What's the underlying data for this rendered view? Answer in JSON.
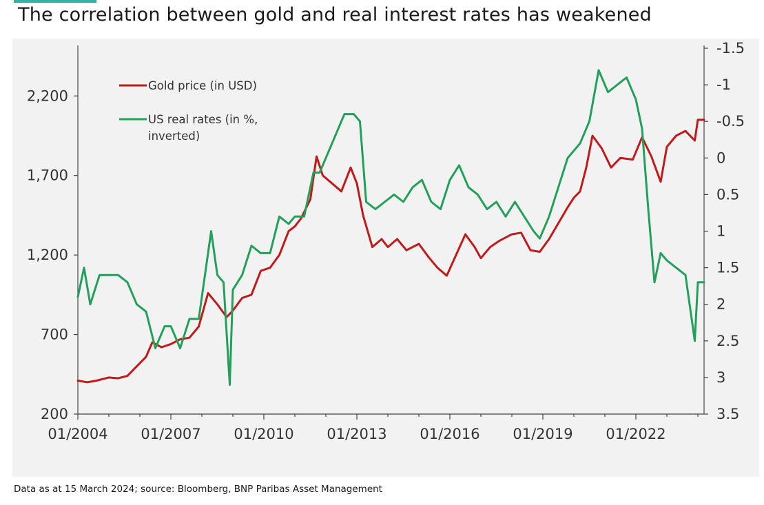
{
  "title": "The correlation between gold and real interest rates has weakened",
  "source": "Data as at 15 March 2024; source: Bloomberg, BNP Paribas Asset Management",
  "colors": {
    "gold": "#c01a1a",
    "rates": "#22a05a",
    "axis": "#444444",
    "background": "#f2f2f2"
  },
  "chart_data": {
    "type": "line",
    "title": "The correlation between gold and real interest rates has weakened",
    "x_ticks": [
      "01/2004",
      "01/2007",
      "01/2010",
      "01/2013",
      "01/2016",
      "01/2019",
      "01/2022"
    ],
    "x_range": [
      2004.0,
      2024.2
    ],
    "y_left": {
      "ticks": [
        "200",
        "700",
        "1,200",
        "1,700",
        "2,200"
      ],
      "tick_values": [
        200,
        700,
        1200,
        1700,
        2200
      ],
      "range": [
        200,
        2500
      ]
    },
    "y_right": {
      "ticks": [
        "-1.5",
        "-1",
        "-0.5",
        "0",
        "0.5",
        "1",
        "1.5",
        "2",
        "2.5",
        "3",
        "3.5"
      ],
      "tick_values": [
        -1.5,
        -1,
        -0.5,
        0,
        0.5,
        1,
        1.5,
        2,
        2.5,
        3,
        3.5
      ],
      "range": [
        -1.5,
        3.5
      ],
      "inverted": true
    },
    "legend": {
      "position": "top-left"
    },
    "series": [
      {
        "name": "Gold price (in USD)",
        "axis": "left",
        "x": [
          2004.0,
          2004.3,
          2004.6,
          2005.0,
          2005.3,
          2005.6,
          2005.9,
          2006.2,
          2006.4,
          2006.7,
          2007.0,
          2007.3,
          2007.6,
          2007.9,
          2008.2,
          2008.5,
          2008.8,
          2009.0,
          2009.3,
          2009.6,
          2009.9,
          2010.2,
          2010.5,
          2010.8,
          2011.0,
          2011.2,
          2011.5,
          2011.7,
          2011.9,
          2012.2,
          2012.5,
          2012.8,
          2013.0,
          2013.2,
          2013.5,
          2013.8,
          2014.0,
          2014.3,
          2014.6,
          2015.0,
          2015.3,
          2015.6,
          2015.9,
          2016.2,
          2016.5,
          2016.8,
          2017.0,
          2017.3,
          2017.6,
          2018.0,
          2018.3,
          2018.6,
          2018.9,
          2019.2,
          2019.5,
          2019.8,
          2020.0,
          2020.2,
          2020.4,
          2020.6,
          2020.9,
          2021.2,
          2021.5,
          2021.9,
          2022.2,
          2022.5,
          2022.8,
          2023.0,
          2023.3,
          2023.6,
          2023.9,
          2024.0,
          2024.2
        ],
        "values": [
          410,
          400,
          410,
          430,
          425,
          440,
          500,
          560,
          650,
          620,
          640,
          670,
          680,
          750,
          960,
          890,
          810,
          850,
          930,
          950,
          1100,
          1120,
          1200,
          1350,
          1380,
          1430,
          1550,
          1820,
          1700,
          1650,
          1600,
          1750,
          1650,
          1450,
          1250,
          1300,
          1250,
          1300,
          1230,
          1270,
          1190,
          1120,
          1070,
          1200,
          1330,
          1250,
          1180,
          1250,
          1290,
          1330,
          1340,
          1230,
          1220,
          1300,
          1400,
          1500,
          1560,
          1600,
          1750,
          1950,
          1870,
          1750,
          1810,
          1800,
          1940,
          1820,
          1660,
          1880,
          1950,
          1980,
          1920,
          2050,
          2050
        ]
      },
      {
        "name": "US real rates (in %, inverted)",
        "axis": "right",
        "x": [
          2004.0,
          2004.2,
          2004.4,
          2004.7,
          2005.0,
          2005.3,
          2005.6,
          2005.9,
          2006.2,
          2006.5,
          2006.8,
          2007.0,
          2007.3,
          2007.6,
          2007.9,
          2008.1,
          2008.3,
          2008.5,
          2008.7,
          2008.9,
          2009.0,
          2009.3,
          2009.6,
          2009.9,
          2010.2,
          2010.5,
          2010.8,
          2011.0,
          2011.3,
          2011.6,
          2011.8,
          2012.0,
          2012.3,
          2012.6,
          2012.9,
          2013.1,
          2013.3,
          2013.6,
          2013.9,
          2014.2,
          2014.5,
          2014.8,
          2015.1,
          2015.4,
          2015.7,
          2016.0,
          2016.3,
          2016.6,
          2016.9,
          2017.2,
          2017.5,
          2017.8,
          2018.1,
          2018.4,
          2018.7,
          2018.9,
          2019.2,
          2019.5,
          2019.8,
          2020.0,
          2020.2,
          2020.5,
          2020.8,
          2021.1,
          2021.4,
          2021.7,
          2022.0,
          2022.2,
          2022.4,
          2022.6,
          2022.8,
          2023.0,
          2023.3,
          2023.6,
          2023.9,
          2024.0,
          2024.2
        ],
        "values": [
          1.9,
          1.5,
          2.0,
          1.6,
          1.6,
          1.6,
          1.7,
          2.0,
          2.1,
          2.6,
          2.3,
          2.3,
          2.6,
          2.2,
          2.2,
          1.6,
          1.0,
          1.6,
          1.7,
          3.1,
          1.8,
          1.6,
          1.2,
          1.3,
          1.3,
          0.8,
          0.9,
          0.8,
          0.8,
          0.2,
          0.2,
          0.0,
          -0.3,
          -0.6,
          -0.6,
          -0.5,
          0.6,
          0.7,
          0.6,
          0.5,
          0.6,
          0.4,
          0.3,
          0.6,
          0.7,
          0.3,
          0.1,
          0.4,
          0.5,
          0.7,
          0.6,
          0.8,
          0.6,
          0.8,
          1.0,
          1.1,
          0.8,
          0.4,
          0.0,
          -0.1,
          -0.2,
          -0.5,
          -1.2,
          -0.9,
          -1.0,
          -1.1,
          -0.8,
          -0.4,
          0.7,
          1.7,
          1.3,
          1.4,
          1.5,
          1.6,
          2.5,
          1.7,
          1.7
        ]
      }
    ]
  }
}
